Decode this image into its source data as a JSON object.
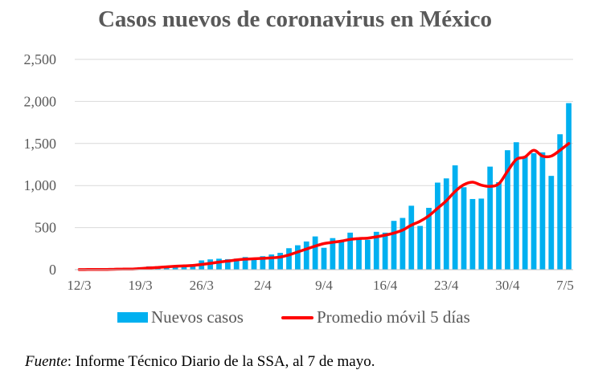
{
  "chart_data": {
    "type": "bar",
    "title": "Casos nuevos de coronavirus en México",
    "xlabel": "",
    "ylabel": "",
    "ylim": [
      0,
      2500
    ],
    "yticks": [
      0,
      500,
      1000,
      1500,
      2000,
      2500
    ],
    "ytick_labels": [
      "0",
      "500",
      "1,000",
      "1,500",
      "2,000",
      "2,500"
    ],
    "grid": true,
    "x_tick_labels": [
      "12/3",
      "19/3",
      "26/3",
      "2/4",
      "9/4",
      "16/4",
      "23/4",
      "30/4",
      "7/5"
    ],
    "x_tick_day_index": [
      0,
      7,
      14,
      21,
      28,
      35,
      42,
      49,
      56
    ],
    "categories": [
      "12/3",
      "13/3",
      "14/3",
      "15/3",
      "16/3",
      "17/3",
      "18/3",
      "19/3",
      "20/3",
      "21/3",
      "22/3",
      "23/3",
      "24/3",
      "25/3",
      "26/3",
      "27/3",
      "28/3",
      "29/3",
      "30/3",
      "31/3",
      "1/4",
      "2/4",
      "3/4",
      "4/4",
      "5/4",
      "6/4",
      "7/4",
      "8/4",
      "9/4",
      "10/4",
      "11/4",
      "12/4",
      "13/4",
      "14/4",
      "15/4",
      "16/4",
      "17/4",
      "18/4",
      "19/4",
      "20/4",
      "21/4",
      "22/4",
      "23/4",
      "24/4",
      "25/4",
      "26/4",
      "27/4",
      "28/4",
      "29/4",
      "30/4",
      "1/5",
      "2/5",
      "3/5",
      "4/5",
      "5/5",
      "6/5",
      "7/5"
    ],
    "series": [
      {
        "name": "Nuevos casos",
        "type": "bar",
        "color": "#00b0f0",
        "values": [
          1,
          4,
          3,
          3,
          12,
          11,
          8,
          29,
          39,
          40,
          48,
          51,
          48,
          65,
          110,
          122,
          130,
          125,
          131,
          150,
          130,
          160,
          180,
          200,
          255,
          290,
          335,
          395,
          260,
          375,
          340,
          440,
          370,
          355,
          450,
          440,
          580,
          615,
          760,
          520,
          735,
          1035,
          1085,
          1240,
          980,
          840,
          845,
          1225,
          1040,
          1420,
          1515,
          1345,
          1385,
          1395,
          1115,
          1610,
          1980
        ]
      },
      {
        "name": "Promedio móvil 5 días",
        "type": "line",
        "color": "#ff0000",
        "values": [
          1,
          2,
          3,
          3,
          5,
          7,
          8,
          13,
          20,
          26,
          33,
          40,
          45,
          50,
          62,
          75,
          90,
          102,
          115,
          125,
          130,
          135,
          140,
          150,
          175,
          210,
          245,
          280,
          310,
          325,
          340,
          360,
          370,
          375,
          390,
          410,
          435,
          470,
          530,
          575,
          640,
          730,
          820,
          930,
          1010,
          1040,
          1005,
          990,
          1020,
          1170,
          1310,
          1340,
          1420,
          1350,
          1350,
          1420,
          1500
        ]
      }
    ],
    "legend_position": "bottom"
  },
  "legend": {
    "bars_label": "Nuevos casos",
    "line_label": "Promedio móvil 5 días"
  },
  "source": {
    "prefix": "Fuente",
    "text": ": Informe Técnico Diario de la SSA, al 7 de mayo."
  },
  "colors": {
    "bar": "#00b0f0",
    "line": "#ff0000",
    "grid": "#d9d9d9",
    "text": "#595959"
  }
}
